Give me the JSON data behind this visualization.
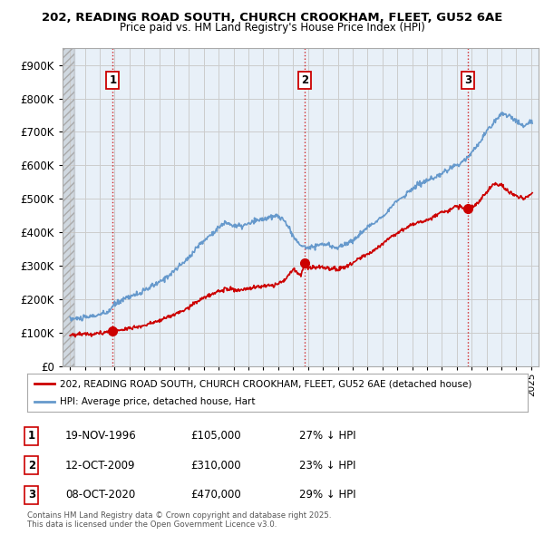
{
  "title_line1": "202, READING ROAD SOUTH, CHURCH CROOKHAM, FLEET, GU52 6AE",
  "title_line2": "Price paid vs. HM Land Registry's House Price Index (HPI)",
  "legend_entry1": "202, READING ROAD SOUTH, CHURCH CROOKHAM, FLEET, GU52 6AE (detached house)",
  "legend_entry2": "HPI: Average price, detached house, Hart",
  "sale1_label": "1",
  "sale1_date": "19-NOV-1996",
  "sale1_price": "£105,000",
  "sale1_hpi": "27% ↓ HPI",
  "sale2_label": "2",
  "sale2_date": "12-OCT-2009",
  "sale2_price": "£310,000",
  "sale2_hpi": "23% ↓ HPI",
  "sale3_label": "3",
  "sale3_date": "08-OCT-2020",
  "sale3_price": "£470,000",
  "sale3_hpi": "29% ↓ HPI",
  "footer": "Contains HM Land Registry data © Crown copyright and database right 2025.\nThis data is licensed under the Open Government Licence v3.0.",
  "red_color": "#cc0000",
  "blue_color": "#6699cc",
  "bg_blue": "#e8f0f8",
  "background_color": "#ffffff",
  "grid_color": "#cccccc",
  "ylim": [
    0,
    950000
  ],
  "yticks": [
    0,
    100000,
    200000,
    300000,
    400000,
    500000,
    600000,
    700000,
    800000,
    900000
  ],
  "sale1_x": 1996.88,
  "sale2_x": 2009.78,
  "sale3_x": 2020.77,
  "sale1_y": 105000,
  "sale2_y": 310000,
  "sale3_y": 470000,
  "xmin": 1993.5,
  "xmax": 2025.5,
  "hatch_xmin": 1993.5,
  "hatch_xmax": 1994.3,
  "hpi_years": [
    1994.0,
    1994.5,
    1995.0,
    1995.5,
    1996.0,
    1996.5,
    1997.0,
    1997.5,
    1998.0,
    1998.5,
    1999.0,
    1999.5,
    2000.0,
    2000.5,
    2001.0,
    2001.5,
    2002.0,
    2002.5,
    2003.0,
    2003.5,
    2004.0,
    2004.5,
    2005.0,
    2005.5,
    2006.0,
    2006.5,
    2007.0,
    2007.5,
    2008.0,
    2008.5,
    2009.0,
    2009.5,
    2010.0,
    2010.5,
    2011.0,
    2011.5,
    2012.0,
    2012.5,
    2013.0,
    2013.5,
    2014.0,
    2014.5,
    2015.0,
    2015.5,
    2016.0,
    2016.5,
    2017.0,
    2017.5,
    2018.0,
    2018.5,
    2019.0,
    2019.5,
    2020.0,
    2020.5,
    2021.0,
    2021.5,
    2022.0,
    2022.5,
    2023.0,
    2023.5,
    2024.0,
    2024.5,
    2025.0
  ],
  "hpi_values": [
    142000,
    143000,
    145000,
    150000,
    155000,
    160000,
    185000,
    200000,
    210000,
    215000,
    225000,
    240000,
    250000,
    268000,
    285000,
    305000,
    325000,
    355000,
    375000,
    395000,
    415000,
    430000,
    420000,
    418000,
    425000,
    435000,
    440000,
    445000,
    450000,
    430000,
    390000,
    360000,
    355000,
    360000,
    365000,
    360000,
    355000,
    365000,
    375000,
    395000,
    415000,
    430000,
    450000,
    470000,
    495000,
    510000,
    530000,
    545000,
    555000,
    560000,
    575000,
    590000,
    600000,
    615000,
    640000,
    665000,
    700000,
    730000,
    755000,
    750000,
    730000,
    720000,
    730000
  ],
  "red_years": [
    1994.0,
    1994.5,
    1995.0,
    1995.5,
    1996.0,
    1996.5,
    1996.88,
    1997.5,
    1998.0,
    1998.5,
    1999.0,
    1999.5,
    2000.0,
    2000.5,
    2001.0,
    2001.5,
    2002.0,
    2002.5,
    2003.0,
    2003.5,
    2004.0,
    2004.5,
    2005.0,
    2005.5,
    2006.0,
    2006.5,
    2007.0,
    2007.5,
    2008.0,
    2008.5,
    2009.0,
    2009.5,
    2009.78,
    2010.0,
    2010.5,
    2011.0,
    2011.5,
    2012.0,
    2012.5,
    2013.0,
    2013.5,
    2014.0,
    2014.5,
    2015.0,
    2015.5,
    2016.0,
    2016.5,
    2017.0,
    2017.5,
    2018.0,
    2018.5,
    2019.0,
    2019.5,
    2020.0,
    2020.5,
    2020.77,
    2021.0,
    2021.5,
    2022.0,
    2022.5,
    2023.0,
    2023.5,
    2024.0,
    2024.5,
    2025.0
  ],
  "red_values": [
    95000,
    96000,
    97000,
    98000,
    100000,
    102000,
    105000,
    110000,
    115000,
    118000,
    123000,
    130000,
    136000,
    146000,
    155000,
    165000,
    177000,
    193000,
    204000,
    215000,
    226000,
    234000,
    228000,
    228000,
    231000,
    237000,
    240000,
    242000,
    246000,
    260000,
    290000,
    270000,
    310000,
    295000,
    295000,
    295000,
    292000,
    290000,
    298000,
    307000,
    323000,
    335000,
    350000,
    366000,
    385000,
    397000,
    412000,
    424000,
    432000,
    436000,
    448000,
    460000,
    467000,
    478000,
    472000,
    470000,
    475000,
    490000,
    520000,
    545000,
    540000,
    520000,
    510000,
    500000,
    515000
  ]
}
